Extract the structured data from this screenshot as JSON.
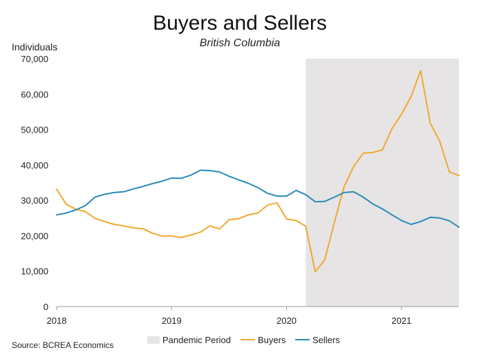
{
  "chart_data": {
    "type": "line",
    "title": "Buyers and Sellers",
    "subtitle": "British Columbia",
    "ylabel": "Individuals",
    "xlabel": "",
    "ylim": [
      0,
      70000
    ],
    "xlim": [
      2018,
      2021.5
    ],
    "y_ticks": [
      0,
      10000,
      20000,
      30000,
      40000,
      50000,
      60000,
      70000
    ],
    "y_tick_labels": [
      "0",
      "10,000",
      "20,000",
      "30,000",
      "40,000",
      "50,000",
      "60,000",
      "70,000"
    ],
    "x_ticks": [
      2018,
      2019,
      2020,
      2021
    ],
    "x_tick_labels": [
      "2018",
      "2019",
      "2020",
      "2021"
    ],
    "grid": false,
    "legend_position": "bottom",
    "shaded_region": {
      "name": "Pandemic Period",
      "x_start": 2020.167,
      "x_end": 2021.5,
      "color": "#e6e4e5"
    },
    "x": [
      2018.0,
      2018.083,
      2018.167,
      2018.25,
      2018.333,
      2018.417,
      2018.5,
      2018.583,
      2018.667,
      2018.75,
      2018.833,
      2018.917,
      2019.0,
      2019.083,
      2019.167,
      2019.25,
      2019.333,
      2019.417,
      2019.5,
      2019.583,
      2019.667,
      2019.75,
      2019.833,
      2019.917,
      2020.0,
      2020.083,
      2020.167,
      2020.25,
      2020.333,
      2020.417,
      2020.5,
      2020.583,
      2020.667,
      2020.75,
      2020.833,
      2020.917,
      2021.0,
      2021.083,
      2021.167,
      2021.25,
      2021.333,
      2021.417,
      2021.5
    ],
    "series": [
      {
        "name": "Buyers",
        "color": "#f0a830",
        "values": [
          33100,
          28900,
          27500,
          26800,
          24900,
          24000,
          23200,
          22800,
          22200,
          22000,
          20700,
          19900,
          19900,
          19500,
          20200,
          21000,
          22800,
          21900,
          24500,
          24800,
          25900,
          26400,
          28600,
          29300,
          24700,
          24300,
          22700,
          9800,
          13200,
          23900,
          33800,
          39500,
          43300,
          43500,
          44200,
          50200,
          54300,
          59300,
          66600,
          51800,
          46700,
          38000,
          37000
        ]
      },
      {
        "name": "Sellers",
        "color": "#2a8ab8",
        "values": [
          25900,
          26400,
          27300,
          28500,
          30900,
          31700,
          32200,
          32400,
          33200,
          33900,
          34700,
          35400,
          36300,
          36200,
          37100,
          38500,
          38400,
          38000,
          36800,
          35800,
          34800,
          33600,
          32000,
          31200,
          31200,
          32800,
          31600,
          29600,
          29700,
          30900,
          32200,
          32400,
          30900,
          29000,
          27600,
          25900,
          24300,
          23200,
          24000,
          25200,
          25000,
          24200,
          22400
        ]
      }
    ]
  },
  "source": "Source: BCREA Economics"
}
